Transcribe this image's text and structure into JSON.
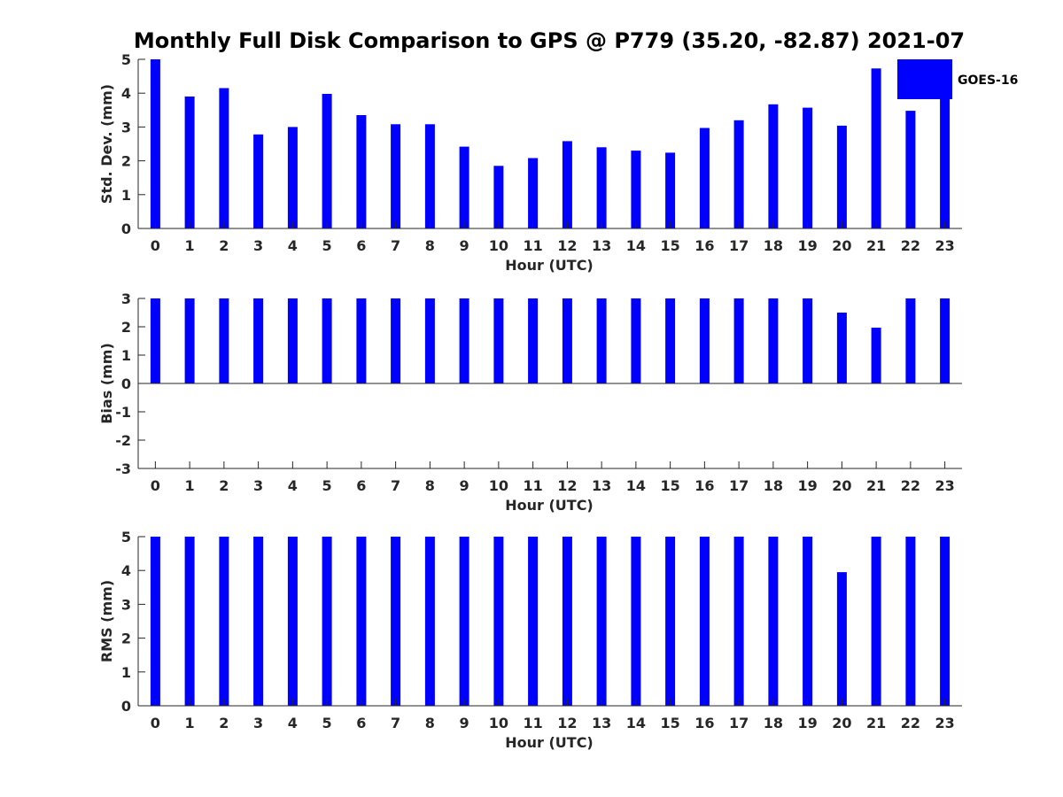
{
  "chart_data": {
    "title": "Monthly Full Disk Comparison to GPS @ P779 (35.20, -82.87) 2021-07",
    "legend": {
      "label": "GOES-16",
      "color": "#0000ff",
      "placement": "top-right"
    },
    "categories": [
      "0",
      "1",
      "2",
      "3",
      "4",
      "5",
      "6",
      "7",
      "8",
      "9",
      "10",
      "11",
      "12",
      "13",
      "14",
      "15",
      "16",
      "17",
      "18",
      "19",
      "20",
      "21",
      "22",
      "23"
    ],
    "panels": [
      {
        "id": "std",
        "type": "bar",
        "xlabel": "Hour (UTC)",
        "ylabel": "Std. Dev. (mm)",
        "ylim": [
          0,
          5
        ],
        "yticks": [
          0,
          1,
          2,
          3,
          4,
          5
        ],
        "series": [
          {
            "name": "GOES-16",
            "values": [
              5.0,
              3.9,
              4.15,
              2.78,
              3.0,
              3.98,
              3.35,
              3.08,
              3.08,
              2.42,
              1.85,
              2.08,
              2.58,
              2.4,
              2.3,
              2.24,
              2.97,
              3.2,
              3.67,
              3.57,
              3.04,
              4.73,
              3.48,
              3.85
            ]
          }
        ]
      },
      {
        "id": "bias",
        "type": "bar",
        "xlabel": "Hour (UTC)",
        "ylabel": "Bias (mm)",
        "ylim": [
          -3,
          3
        ],
        "yticks": [
          -3,
          -2,
          -1,
          0,
          1,
          2,
          3
        ],
        "series": [
          {
            "name": "GOES-16",
            "values": [
              3,
              3,
              3,
              3,
              3,
              3,
              3,
              3,
              3,
              3,
              3,
              3,
              3,
              3,
              3,
              3,
              3,
              3,
              3,
              3,
              2.5,
              1.97,
              3,
              3
            ]
          }
        ]
      },
      {
        "id": "rms",
        "type": "bar",
        "xlabel": "Hour (UTC)",
        "ylabel": "RMS (mm)",
        "ylim": [
          0,
          5
        ],
        "yticks": [
          0,
          1,
          2,
          3,
          4,
          5
        ],
        "series": [
          {
            "name": "GOES-16",
            "values": [
              5,
              5,
              5,
              5,
              5,
              5,
              5,
              5,
              5,
              5,
              5,
              5,
              5,
              5,
              5,
              5,
              5,
              5,
              5,
              5,
              3.95,
              5,
              5,
              5
            ]
          }
        ]
      }
    ]
  }
}
